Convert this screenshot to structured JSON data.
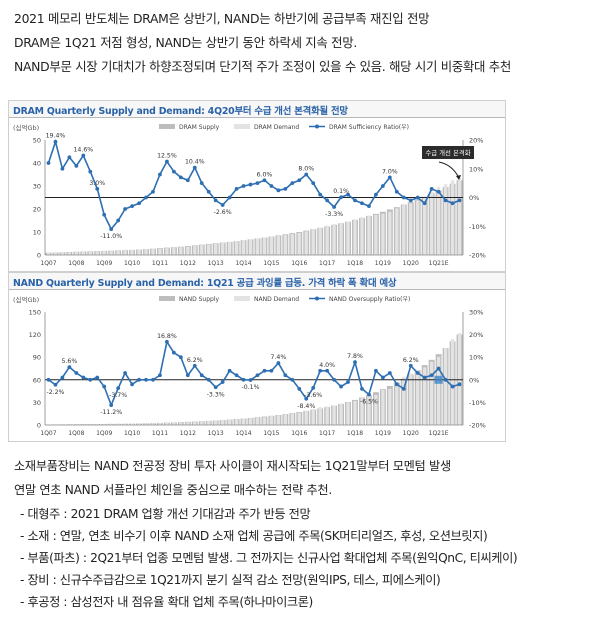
{
  "intro": {
    "lines": [
      "2021 메모리 반도체는 DRAM은 상반기, NAND는 하반기에 공급부족 재진입 전망",
      "DRAM은 1Q21 저점 형성, NAND는 상반기 동안 하락세 지속 전망.",
      "NAND부문 시장 기대치가 하향조정되며 단기적 주가 조정이 있을 수 있음. 해당 시기 비중확대 추천"
    ]
  },
  "colors": {
    "bars_dark": "#bdbdbd",
    "bars_light": "#e3e3e3",
    "line": "#2e6fb3",
    "title": "#2a62a8",
    "zero_line": "#222222"
  },
  "chart_data": [
    {
      "type": "bar",
      "title": "DRAM Quarterly Supply and Demand: 4Q20부터 수급 개선 본격화될 전망",
      "y_unit": "(십억Gb)",
      "categories": [
        "1Q07",
        "2Q07",
        "3Q07",
        "4Q07",
        "1Q08",
        "2Q08",
        "3Q08",
        "4Q08",
        "1Q09",
        "2Q09",
        "3Q09",
        "4Q09",
        "1Q10",
        "2Q10",
        "3Q10",
        "4Q10",
        "1Q11",
        "2Q11",
        "3Q11",
        "4Q11",
        "1Q12",
        "2Q12",
        "3Q12",
        "4Q12",
        "1Q13",
        "2Q13",
        "3Q13",
        "4Q13",
        "1Q14",
        "2Q14",
        "3Q14",
        "4Q14",
        "1Q15",
        "2Q15",
        "3Q15",
        "4Q15",
        "1Q16",
        "2Q16",
        "3Q16",
        "4Q16",
        "1Q17",
        "2Q17",
        "3Q17",
        "4Q17",
        "1Q18",
        "2Q18",
        "3Q18",
        "4Q18",
        "1Q19",
        "2Q19",
        "3Q19",
        "4Q19",
        "1Q20",
        "2Q20",
        "3Q20",
        "4Q20",
        "1Q21",
        "2Q21",
        "3Q21",
        "4Q21"
      ],
      "x_tick_labels": [
        "1Q07",
        "1Q08",
        "1Q09",
        "1Q10",
        "1Q11",
        "1Q12",
        "1Q13",
        "1Q14",
        "1Q15",
        "1Q16",
        "1Q17",
        "1Q18",
        "1Q19",
        "1Q20",
        "1Q21E"
      ],
      "legend": [
        "DRAM Supply",
        "DRAM Demand",
        "DRAM Sufficiency Ratio(우)"
      ],
      "ylim_left": [
        0,
        50
      ],
      "yticks_left": [
        0,
        10,
        20,
        30,
        40,
        50
      ],
      "ylim_right": [
        -20,
        20
      ],
      "yticks_right": [
        "-20%",
        "-10%",
        "0%",
        "10%",
        "20%"
      ],
      "series": [
        {
          "name": "DRAM Supply",
          "values": [
            1.0,
            1.1,
            1.2,
            1.3,
            1.4,
            1.5,
            1.6,
            1.7,
            1.8,
            1.9,
            2.0,
            2.1,
            2.2,
            2.4,
            2.6,
            2.8,
            3.0,
            3.2,
            3.4,
            3.6,
            3.9,
            4.2,
            4.5,
            4.8,
            5.1,
            5.4,
            5.7,
            6.0,
            6.4,
            6.8,
            7.2,
            7.6,
            8.0,
            8.5,
            9.0,
            9.5,
            10.0,
            10.6,
            11.2,
            11.8,
            12.4,
            13.1,
            13.8,
            14.5,
            15.3,
            16.1,
            17.0,
            17.9,
            18.8,
            19.8,
            20.8,
            21.9,
            23.0,
            24.2,
            25.4,
            26.7,
            28.0,
            29.5,
            31.0,
            32.5
          ]
        },
        {
          "name": "DRAM Demand",
          "values": [
            0.9,
            1.0,
            1.1,
            1.2,
            1.3,
            1.4,
            1.5,
            1.6,
            1.8,
            2.0,
            2.2,
            2.3,
            2.3,
            2.4,
            2.6,
            2.8,
            2.8,
            3.0,
            3.3,
            3.4,
            3.6,
            4.0,
            4.3,
            4.6,
            4.9,
            5.3,
            5.7,
            6.0,
            6.3,
            6.8,
            7.2,
            7.6,
            7.9,
            8.3,
            8.7,
            9.1,
            9.6,
            10.3,
            11.2,
            12.0,
            12.8,
            13.4,
            14.0,
            14.5,
            15.5,
            16.4,
            17.1,
            17.5,
            18.0,
            18.8,
            20.3,
            22.2,
            22.5,
            23.7,
            25.5,
            27.6,
            29.5,
            30.8,
            32.5,
            33.5
          ]
        },
        {
          "name": "DRAM Sufficiency Ratio(우)",
          "values": [
            12.0,
            19.4,
            10.0,
            14.0,
            11.0,
            14.6,
            9.0,
            3.0,
            -6.0,
            -11.0,
            -8.0,
            -4.0,
            -3.0,
            -2.0,
            0.0,
            2.0,
            8.0,
            12.5,
            9.0,
            7.0,
            6.0,
            10.4,
            5.0,
            2.0,
            -1.0,
            -2.6,
            0.0,
            3.0,
            4.0,
            4.5,
            5.0,
            6.0,
            4.0,
            2.5,
            3.0,
            5.0,
            6.0,
            8.0,
            5.0,
            1.0,
            -1.0,
            -3.3,
            0.1,
            1.0,
            -1.0,
            -2.0,
            -3.0,
            1.0,
            4.0,
            7.0,
            2.0,
            0.0,
            -1.0,
            0.0,
            -2.0,
            3.0,
            2.0,
            -1.0,
            -2.0,
            -1.0
          ]
        }
      ],
      "data_labels": [
        {
          "index": 1,
          "text": "19.4%"
        },
        {
          "index": 5,
          "text": "14.6%"
        },
        {
          "index": 7,
          "text": "3.0%"
        },
        {
          "index": 9,
          "text": "-11.0%"
        },
        {
          "index": 17,
          "text": "12.5%"
        },
        {
          "index": 21,
          "text": "10.4%"
        },
        {
          "index": 25,
          "text": "-2.6%"
        },
        {
          "index": 31,
          "text": "6.0%"
        },
        {
          "index": 37,
          "text": "8.0%"
        },
        {
          "index": 41,
          "text": "-3.3%"
        },
        {
          "index": 42,
          "text": "0.1%"
        },
        {
          "index": 49,
          "text": "7.0%"
        }
      ],
      "annotation": "수급 개선 본격화"
    },
    {
      "type": "bar",
      "title": "NAND Quarterly Supply and Demand: 1Q21 공급 과잉률 급등. 가격 하락 폭 확대 예상",
      "y_unit": "(십억Gb)",
      "categories": [
        "1Q07",
        "2Q07",
        "3Q07",
        "4Q07",
        "1Q08",
        "2Q08",
        "3Q08",
        "4Q08",
        "1Q09",
        "2Q09",
        "3Q09",
        "4Q09",
        "1Q10",
        "2Q10",
        "3Q10",
        "4Q10",
        "1Q11",
        "2Q11",
        "3Q11",
        "4Q11",
        "1Q12",
        "2Q12",
        "3Q12",
        "4Q12",
        "1Q13",
        "2Q13",
        "3Q13",
        "4Q13",
        "1Q14",
        "2Q14",
        "3Q14",
        "4Q14",
        "1Q15",
        "2Q15",
        "3Q15",
        "4Q15",
        "1Q16",
        "2Q16",
        "3Q16",
        "4Q16",
        "1Q17",
        "2Q17",
        "3Q17",
        "4Q17",
        "1Q18",
        "2Q18",
        "3Q18",
        "4Q18",
        "1Q19",
        "2Q19",
        "3Q19",
        "4Q19",
        "1Q20",
        "2Q20",
        "3Q20",
        "4Q20",
        "1Q21",
        "2Q21",
        "3Q21",
        "4Q21"
      ],
      "x_tick_labels": [
        "1Q07",
        "1Q08",
        "1Q09",
        "1Q10",
        "1Q11",
        "1Q12",
        "1Q13",
        "1Q14",
        "1Q15",
        "1Q16",
        "1Q17",
        "1Q18",
        "1Q19",
        "1Q20",
        "1Q21E"
      ],
      "legend": [
        "NAND Supply",
        "NAND Demand",
        "NAND Oversupply Ratio(우)"
      ],
      "ylim_left": [
        0,
        150
      ],
      "yticks_left": [
        0,
        30,
        60,
        90,
        120,
        150
      ],
      "ylim_right": [
        -20,
        30
      ],
      "yticks_right": [
        "-20%",
        "-10%",
        "0%",
        "10%",
        "20%",
        "30%"
      ],
      "series": [
        {
          "name": "NAND Supply",
          "values": [
            0.6,
            0.7,
            0.8,
            0.9,
            1.0,
            1.1,
            1.2,
            1.3,
            1.4,
            1.5,
            1.6,
            1.7,
            1.9,
            2.1,
            2.3,
            2.5,
            2.8,
            3.1,
            3.4,
            3.8,
            4.2,
            4.6,
            5.0,
            5.5,
            6.0,
            6.6,
            7.2,
            7.9,
            8.6,
            9.4,
            10.3,
            11.2,
            12.2,
            13.3,
            14.5,
            15.8,
            17.2,
            18.7,
            20.3,
            22.0,
            23.8,
            25.8,
            28.0,
            30.5,
            33.3,
            36.4,
            39.8,
            43.5,
            47.5,
            51.8,
            56.5,
            61.5,
            67.0,
            73.0,
            79.5,
            86.5,
            94.0,
            102.0,
            111.0,
            120.0
          ]
        },
        {
          "name": "NAND Demand",
          "values": [
            0.6,
            0.7,
            0.8,
            0.8,
            0.9,
            1.0,
            1.2,
            1.3,
            1.5,
            1.7,
            1.7,
            1.6,
            2.0,
            2.1,
            2.3,
            2.5,
            2.8,
            2.7,
            3.0,
            3.3,
            3.7,
            4.2,
            4.6,
            5.5,
            5.7,
            6.8,
            7.0,
            7.8,
            8.8,
            9.1,
            9.8,
            10.3,
            12.0,
            13.0,
            14.3,
            15.4,
            16.3,
            18.7,
            21.0,
            23.6,
            24.6,
            25.8,
            28.5,
            30.0,
            32.0,
            35.5,
            38.3,
            40.0,
            46.5,
            48.0,
            55.0,
            64.2,
            68.5,
            73.2,
            76.5,
            84.0,
            90.5,
            102.0,
            114.0,
            122.0
          ]
        },
        {
          "name": "NAND Oversupply Ratio(우)",
          "values": [
            0.0,
            -2.2,
            1.0,
            5.6,
            3.0,
            1.0,
            0.0,
            1.0,
            -3.0,
            -11.2,
            -3.7,
            3.0,
            -2.0,
            0.0,
            0.0,
            0.0,
            2.0,
            16.8,
            12.0,
            10.0,
            2.0,
            6.2,
            2.0,
            0.0,
            -3.3,
            -1.0,
            4.0,
            2.0,
            0.0,
            -0.1,
            2.0,
            4.0,
            4.0,
            7.4,
            2.0,
            0.0,
            -4.0,
            -8.4,
            -3.6,
            4.0,
            4.0,
            0.0,
            -3.0,
            -1.0,
            7.8,
            -4.0,
            -6.5,
            4.0,
            1.0,
            3.0,
            -2.0,
            -4.0,
            6.2,
            3.0,
            1.0,
            2.0,
            5.0,
            0.0,
            -3.0,
            -2.0
          ]
        }
      ],
      "data_labels": [
        {
          "index": 1,
          "text": "-2.2%"
        },
        {
          "index": 3,
          "text": "5.6%"
        },
        {
          "index": 9,
          "text": "-11.2%"
        },
        {
          "index": 10,
          "text": "-3.7%"
        },
        {
          "index": 17,
          "text": "16.8%"
        },
        {
          "index": 21,
          "text": "6.2%"
        },
        {
          "index": 24,
          "text": "-3.3%"
        },
        {
          "index": 29,
          "text": "-0.1%"
        },
        {
          "index": 33,
          "text": "7.4%"
        },
        {
          "index": 37,
          "text": "-8.4%"
        },
        {
          "index": 38,
          "text": "-3.6%"
        },
        {
          "index": 40,
          "text": "4.0%"
        },
        {
          "index": 44,
          "text": "7.8%"
        },
        {
          "index": 46,
          "text": "-6.5%"
        },
        {
          "index": 52,
          "text": "6.2%"
        }
      ]
    }
  ],
  "outro": {
    "lines": [
      "소재부품장비는 NAND 전공정 장비 투자 사이클이 재시작되는 1Q21말부터 모멘텀 발생",
      "연말 연초 NAND 서플라인 체인을 중심으로 매수하는 전략 추천."
    ],
    "bullets": [
      "대형주 : 2021 DRAM 업황 개선 기대감과 주가 반등 전망",
      "소재 : 연말, 연초 비수기 이후 NAND 소재 업체 공급에 주목(SK머티리얼즈, 후성, 오션브릿지)",
      "부품(파츠) : 2Q21부터 업종 모멘텀 발생. 그 전까지는 신규사업 확대업체 주목(원익QnC, 티씨케이)",
      "장비 : 신규수주급감으로 1Q21까지 분기 실적 감소 전망(원익IPS, 테스, 피에스케이)",
      "후공정 : 삼성전자 내 점유율 확대 업체 주목(하나마이크론)"
    ]
  }
}
